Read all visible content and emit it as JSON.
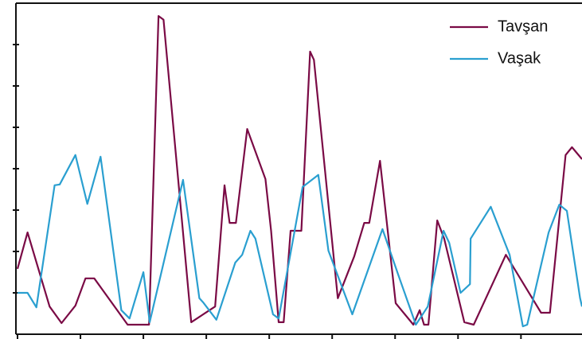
{
  "chart_data": {
    "type": "line",
    "legend": "top-right",
    "xlim": [
      0,
      8.97
    ],
    "ylim": [
      0,
      8
    ],
    "xticks": [
      0,
      1,
      2,
      3,
      4,
      5,
      6,
      7,
      8
    ],
    "yticks": [
      1,
      2,
      3,
      4,
      5,
      6,
      7
    ],
    "series": [
      {
        "name": "Tavşan",
        "color": "#7a0a45",
        "x": [
          0,
          0.16,
          0.51,
          0.7,
          0.92,
          1.08,
          1.22,
          1.75,
          1.9,
          2.09,
          2.24,
          2.32,
          2.76,
          3.14,
          3.29,
          3.37,
          3.47,
          3.65,
          3.94,
          4.03,
          4.15,
          4.23,
          4.34,
          4.51,
          4.65,
          4.71,
          5.09,
          5.35,
          5.51,
          5.59,
          5.76,
          6.01,
          6.29,
          6.39,
          6.46,
          6.53,
          6.67,
          6.78,
          7.1,
          7.25,
          7.76,
          8.32,
          8.46,
          8.71,
          8.81,
          8.97
        ],
        "values": [
          1.58,
          2.46,
          0.67,
          0.27,
          0.69,
          1.35,
          1.35,
          0.23,
          0.23,
          0.23,
          7.69,
          7.6,
          0.29,
          0.67,
          3.6,
          2.69,
          2.69,
          4.96,
          3.75,
          2.5,
          0.29,
          0.29,
          2.5,
          2.5,
          6.83,
          6.63,
          0.87,
          1.88,
          2.69,
          2.69,
          4.19,
          0.75,
          0.23,
          0.58,
          0.23,
          0.23,
          2.75,
          2.31,
          0.29,
          0.23,
          1.92,
          0.52,
          0.52,
          4.33,
          4.52,
          4.23
        ]
      },
      {
        "name": "Vaşak",
        "color": "#2a9fd0",
        "x": [
          0,
          0.16,
          0.3,
          0.59,
          0.67,
          0.92,
          1.11,
          1.32,
          1.65,
          1.78,
          2.0,
          2.1,
          2.63,
          2.89,
          2.95,
          3.16,
          3.46,
          3.57,
          3.7,
          3.78,
          4.06,
          4.15,
          4.53,
          4.78,
          4.94,
          5.32,
          5.8,
          6.04,
          6.33,
          6.52,
          6.77,
          6.86,
          7.04,
          7.19,
          7.2,
          7.52,
          7.82,
          8.03,
          8.1,
          8.44,
          8.61,
          8.73,
          8.94,
          8.97
        ],
        "values": [
          1,
          1,
          0.65,
          3.6,
          3.62,
          4.33,
          3.15,
          4.29,
          0.58,
          0.38,
          1.5,
          0.29,
          3.73,
          0.87,
          0.77,
          0.35,
          1.73,
          1.92,
          2.5,
          2.31,
          0.48,
          0.38,
          3.56,
          3.85,
          2.02,
          0.48,
          2.54,
          1.48,
          0.23,
          0.67,
          2.5,
          2.21,
          1,
          1.21,
          2.31,
          3.08,
          1.92,
          0.19,
          0.23,
          2.46,
          3.13,
          2.98,
          0.87,
          0.67
        ]
      }
    ]
  }
}
